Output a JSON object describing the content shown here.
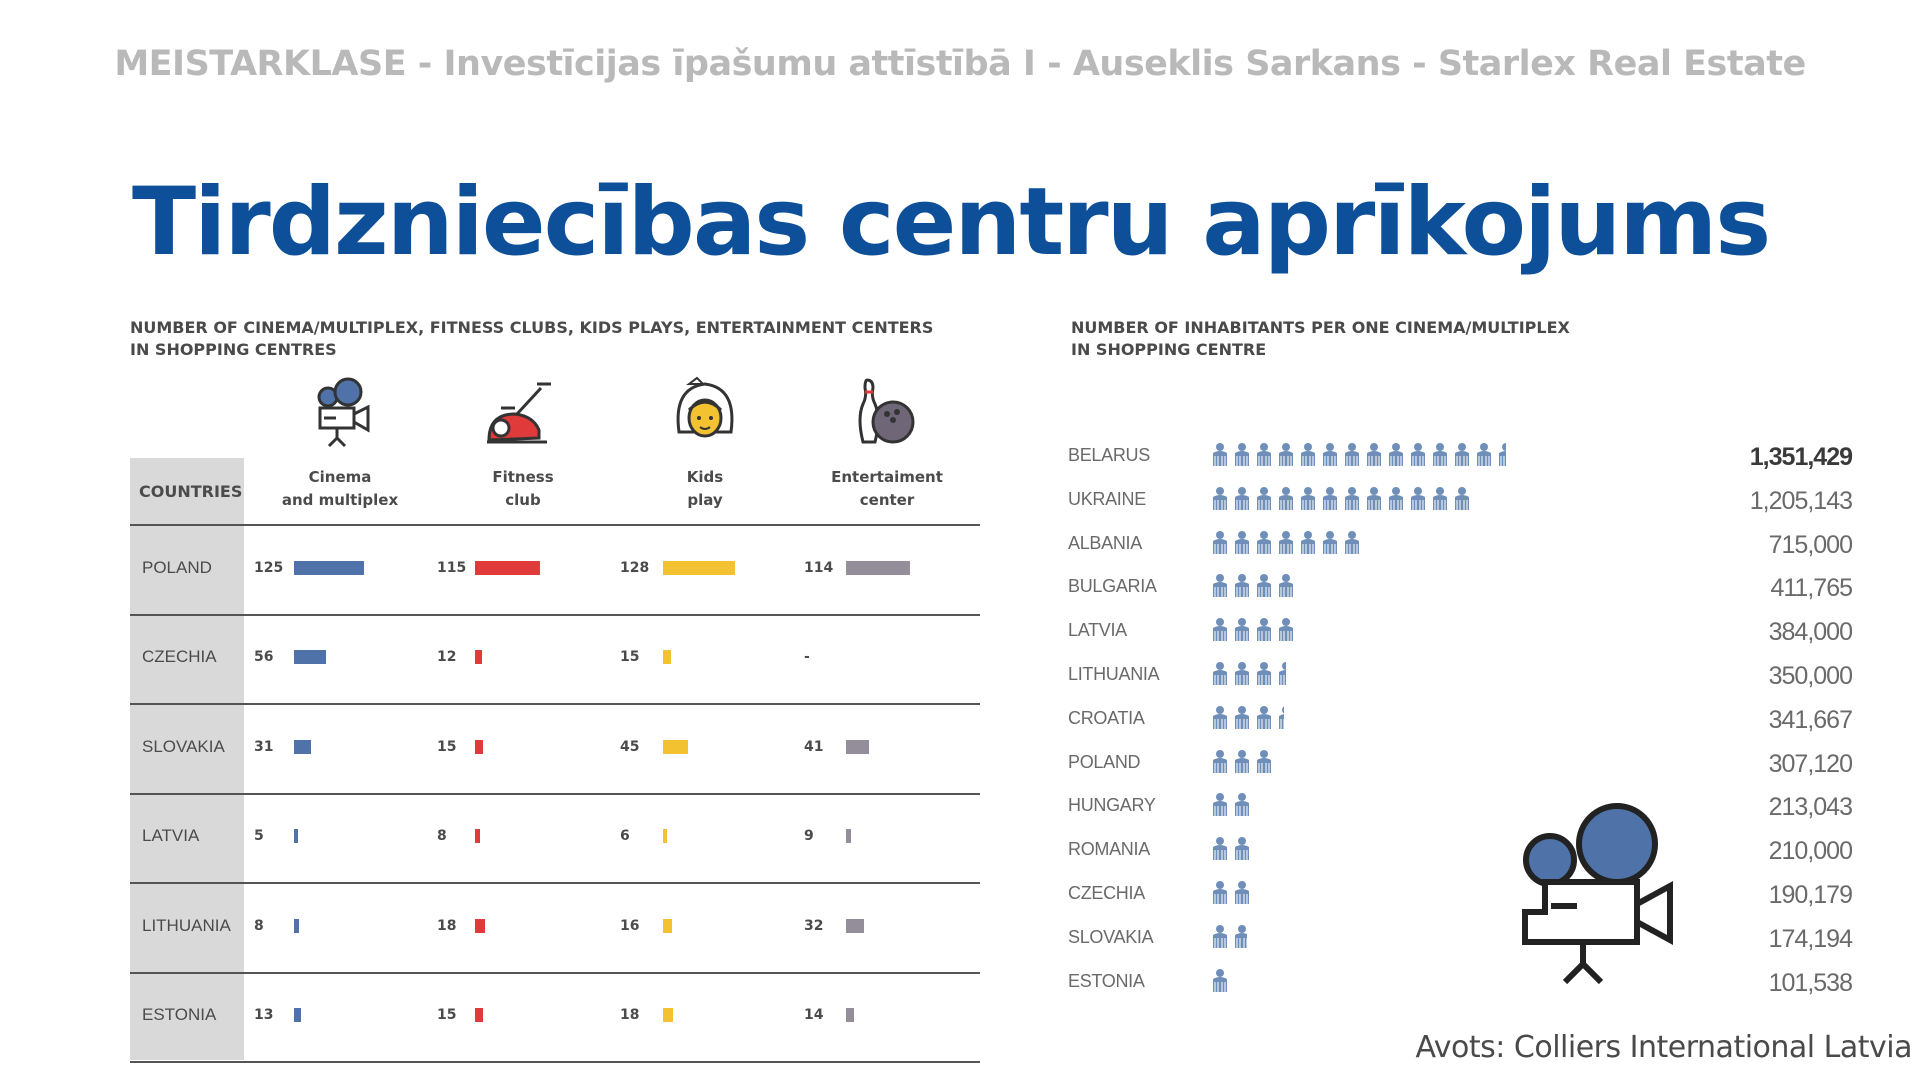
{
  "header": "MEISTARKLASE - Investīcijas īpašumu attīstībā I - Auseklis Sarkans - Starlex Real Estate",
  "title": "Tirdzniecības centru aprīkojums",
  "source": "Avots: Colliers International Latvia",
  "colors": {
    "cinema": "#4f72a8",
    "fitness": "#e03a3a",
    "kids": "#f2c230",
    "entertainment": "#948d9a",
    "people": "#6f8fb8",
    "title": "#0d4f98"
  },
  "chart_data": [
    {
      "type": "table",
      "title_lines": [
        "NUMBER OF CINEMA/MULTIPLEX, FITNESS CLUBS, KIDS PLAYS, ENTERTAINMENT CENTERS",
        "IN SHOPPING CENTRES"
      ],
      "countries_header": "COUNTRIES",
      "columns": [
        {
          "label_lines": [
            "Cinema",
            "and multiplex"
          ],
          "icon": "film-camera-icon",
          "color": "#4f72a8"
        },
        {
          "label_lines": [
            "Fitness",
            "club"
          ],
          "icon": "exercise-bike-icon",
          "color": "#e03a3a"
        },
        {
          "label_lines": [
            "Kids",
            "play"
          ],
          "icon": "child-face-icon",
          "color": "#f2c230"
        },
        {
          "label_lines": [
            "Entertaiment",
            "center"
          ],
          "icon": "bowling-icon",
          "color": "#948d9a"
        }
      ],
      "rows": [
        {
          "country": "POLAND",
          "values": [
            "125",
            "115",
            "128",
            "114"
          ]
        },
        {
          "country": "CZECHIA",
          "values": [
            "56",
            "12",
            "15",
            "-"
          ]
        },
        {
          "country": "SLOVAKIA",
          "values": [
            "31",
            "15",
            "45",
            "41"
          ]
        },
        {
          "country": "LATVIA",
          "values": [
            "5",
            "8",
            "6",
            "9"
          ]
        },
        {
          "country": "LITHUANIA",
          "values": [
            "8",
            "18",
            "16",
            "32"
          ]
        },
        {
          "country": "ESTONIA",
          "values": [
            "13",
            "15",
            "18",
            "14"
          ]
        }
      ]
    },
    {
      "type": "bar",
      "title_lines": [
        "NUMBER OF INHABITANTS PER ONE CINEMA/MULTIPLEX",
        "IN SHOPPING CENTRE"
      ],
      "icon": "person-icon",
      "categories": [
        "BELARUS",
        "UKRAINE",
        "ALBANIA",
        "BULGARIA",
        "LATVIA",
        "LITHUANIA",
        "CROATIA",
        "POLAND",
        "HUNGARY",
        "ROMANIA",
        "CZECHIA",
        "SLOVAKIA",
        "ESTONIA"
      ],
      "values": [
        1351429,
        1205143,
        715000,
        411765,
        384000,
        350000,
        341667,
        307120,
        213043,
        210000,
        190179,
        174194,
        101538
      ],
      "labels": [
        "1,351,429",
        "1,205,143",
        "715,000",
        "411,765",
        "384,000",
        "350,000",
        "341,667",
        "307,120",
        "213,043",
        "210,000",
        "190,179",
        "174,194",
        "101,538"
      ]
    }
  ]
}
